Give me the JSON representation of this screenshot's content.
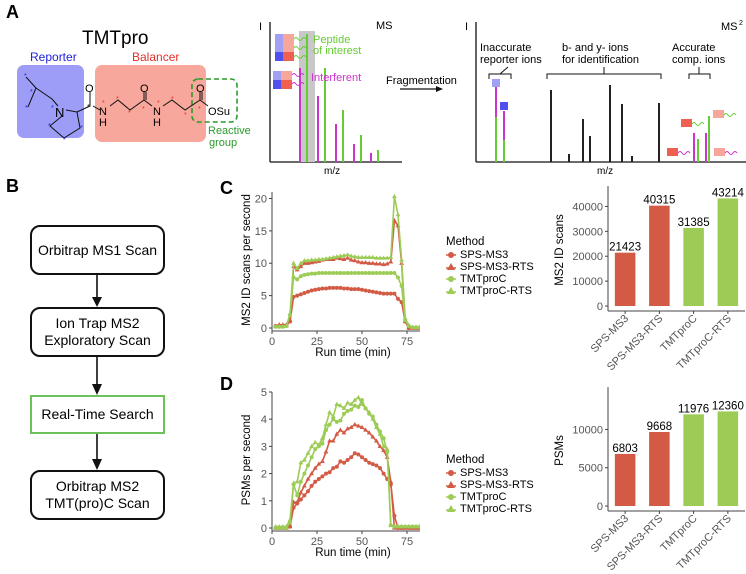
{
  "panels": {
    "A": {
      "label": "A",
      "title": "TMTpro",
      "reporter_label": "Reporter",
      "balancer_label": "Balancer",
      "reactive_label_1": "Reactive",
      "reactive_label_2": "group",
      "atoms": {
        "N1": "N",
        "N2": "N",
        "H2": "H",
        "N3": "N",
        "H3": "H",
        "O1": "O",
        "O2": "O",
        "O3": "O",
        "OSu": "OSu"
      },
      "ms1": {
        "y_label": "I",
        "title": "MS",
        "x_label": "m/z",
        "peptide_label_1": "Peptide",
        "peptide_label_2": "of interest",
        "interferent_label": "Interferent"
      },
      "arrow_label": "Fragmentation",
      "ms2": {
        "y_label": "I",
        "title": "MS",
        "title_sup": "2",
        "x_label": "m/z",
        "group1_1": "Inaccurate",
        "group1_2": "reporter ions",
        "group2_1": "b- and y- ions",
        "group2_2": "for identification",
        "group3_1": "Accurate",
        "group3_2": "comp. ions"
      },
      "colors": {
        "reporter": "#9a9af5",
        "balancer": "#f7a69b",
        "reactive": "#2a9a2a",
        "peptide": "#66cc33",
        "interferent": "#cc33cc"
      }
    },
    "B": {
      "label": "B",
      "steps": [
        {
          "line1": "Orbitrap MS1 Scan",
          "line2": ""
        },
        {
          "line1": "Ion Trap MS2",
          "line2": "Exploratory Scan"
        },
        {
          "line1": "Real-Time Search",
          "line2": ""
        },
        {
          "line1": "Orbitrap MS2",
          "line2": "TMT(pro)C Scan"
        }
      ]
    },
    "C": {
      "label": "C"
    },
    "D": {
      "label": "D"
    }
  },
  "legend": {
    "title": "Method",
    "items": [
      "SPS-MS3",
      "SPS-MS3-RTS",
      "TMTproC",
      "TMTproC-RTS"
    ]
  },
  "colors": {
    "sps": "#d35a45",
    "tmt": "#9ccc55"
  },
  "chart_data": [
    {
      "id": "C-line",
      "type": "line",
      "title": "",
      "xlabel": "Run time (min)",
      "ylabel": "MS2 ID scans per second",
      "xlim": [
        0,
        90
      ],
      "ylim": [
        0,
        21
      ],
      "xticks": [
        0,
        25,
        50,
        75
      ],
      "yticks": [
        0,
        5,
        10,
        15,
        20
      ],
      "grid": false,
      "legend": "right",
      "x": [
        2,
        4,
        6,
        8,
        10,
        12,
        14,
        16,
        18,
        20,
        22,
        24,
        26,
        28,
        30,
        32,
        34,
        36,
        38,
        40,
        42,
        44,
        46,
        48,
        50,
        52,
        54,
        56,
        58,
        60,
        62,
        64,
        66,
        68,
        70,
        72,
        74,
        76,
        78,
        80,
        82,
        84,
        86,
        88
      ],
      "series": [
        {
          "name": "SPS-MS3",
          "marker": "circle",
          "values": [
            0.3,
            0.3,
            0.3,
            0.4,
            1.0,
            4.8,
            5.0,
            5.2,
            5.4,
            5.6,
            5.8,
            5.9,
            6.0,
            6.1,
            6.1,
            6.2,
            6.2,
            6.2,
            6.2,
            6.1,
            6.1,
            6.0,
            6.0,
            6.0,
            5.9,
            5.8,
            5.7,
            5.6,
            5.5,
            5.4,
            5.3,
            5.3,
            5.3,
            5.3,
            4.5,
            4.0,
            1.0,
            0.0,
            0.0,
            0.0,
            0.0,
            0.0,
            0.0,
            0.0
          ]
        },
        {
          "name": "SPS-MS3-RTS",
          "marker": "triangle",
          "values": [
            0.3,
            0.5,
            0.5,
            0.5,
            1.2,
            9.5,
            9.0,
            9.5,
            10.0,
            10.0,
            10.1,
            10.2,
            10.3,
            10.5,
            10.6,
            10.6,
            10.6,
            10.8,
            10.7,
            10.6,
            10.8,
            10.5,
            10.4,
            10.2,
            10.1,
            10.1,
            10.0,
            10.0,
            9.9,
            9.9,
            9.8,
            9.9,
            10.2,
            16.6,
            15.8,
            10.0,
            1.0,
            0.0,
            0.0,
            0.0,
            0.0,
            0.0,
            0.0,
            0.0
          ]
        },
        {
          "name": "TMTproC",
          "marker": "circle",
          "values": [
            0.2,
            0.2,
            0.2,
            0.3,
            2.0,
            7.8,
            7.5,
            8.0,
            8.2,
            8.3,
            8.4,
            8.4,
            8.5,
            8.5,
            8.5,
            8.5,
            8.5,
            8.5,
            8.5,
            8.5,
            8.5,
            8.5,
            8.5,
            8.5,
            8.5,
            8.5,
            8.5,
            8.5,
            8.5,
            8.5,
            8.5,
            8.5,
            8.5,
            8.5,
            7.8,
            6.5,
            1.2,
            0.3,
            0.1,
            0.1,
            0.1,
            0.1,
            0.1,
            0.1
          ]
        },
        {
          "name": "TMTproC-RTS",
          "marker": "triangle",
          "values": [
            0.2,
            0.2,
            0.2,
            0.3,
            2.2,
            10.0,
            9.2,
            10.0,
            10.4,
            10.4,
            10.5,
            10.5,
            10.6,
            10.6,
            10.7,
            10.8,
            10.9,
            11.0,
            11.1,
            11.2,
            11.3,
            11.1,
            11.0,
            10.9,
            10.9,
            10.9,
            10.9,
            10.9,
            10.8,
            10.8,
            10.8,
            10.8,
            10.9,
            20.3,
            17.5,
            10.5,
            1.5,
            0.4,
            0.1,
            0.1,
            0.1,
            0.1,
            0.1,
            0.1
          ]
        }
      ]
    },
    {
      "id": "C-bar",
      "type": "bar",
      "title": "",
      "xlabel": "",
      "ylabel": "MS2 ID scans",
      "categories": [
        "SPS-MS3",
        "SPS-MS3-RTS",
        "TMTproC",
        "TMTproC-RTS"
      ],
      "values": [
        21423,
        40315,
        31385,
        43214
      ],
      "data_labels": [
        "21423",
        "40315",
        "31385",
        "43214"
      ],
      "ylim": [
        0,
        45000
      ],
      "yticks": [
        0,
        10000,
        20000,
        30000,
        40000
      ],
      "bar_colors": [
        "#d35a45",
        "#d35a45",
        "#9ccc55",
        "#9ccc55"
      ],
      "grid": false
    },
    {
      "id": "D-line",
      "type": "line",
      "title": "",
      "xlabel": "Run time (min)",
      "ylabel": "PSMs per second",
      "xlim": [
        0,
        90
      ],
      "ylim": [
        0,
        5
      ],
      "xticks": [
        0,
        25,
        50,
        75
      ],
      "yticks": [
        0,
        1,
        2,
        3,
        4,
        5
      ],
      "grid": false,
      "legend": "right",
      "x": [
        2,
        4,
        6,
        8,
        10,
        12,
        14,
        16,
        18,
        20,
        22,
        24,
        26,
        28,
        30,
        32,
        34,
        36,
        38,
        40,
        42,
        44,
        46,
        48,
        50,
        52,
        54,
        56,
        58,
        60,
        62,
        64,
        66,
        68,
        70,
        72,
        74,
        76,
        78,
        80,
        82,
        84,
        86,
        88
      ],
      "series": [
        {
          "name": "SPS-MS3",
          "marker": "circle",
          "values": [
            0,
            0,
            0,
            0,
            0.05,
            0.75,
            0.9,
            1.05,
            1.2,
            1.35,
            1.55,
            1.7,
            1.8,
            1.9,
            2.0,
            2.05,
            2.2,
            2.25,
            2.45,
            2.4,
            2.5,
            2.6,
            2.75,
            2.7,
            2.6,
            2.5,
            2.4,
            2.35,
            2.3,
            2.2,
            2.0,
            1.8,
            1.6,
            0.45,
            0.0,
            0.0,
            0.0,
            0.0,
            0.0,
            0.0,
            0.0,
            0.0,
            0.0,
            0.0
          ]
        },
        {
          "name": "SPS-MS3-RTS",
          "marker": "triangle",
          "values": [
            0,
            0,
            0,
            0,
            0.05,
            0.95,
            0.95,
            1.3,
            1.55,
            1.8,
            2.0,
            2.2,
            2.35,
            2.45,
            2.8,
            3.2,
            3.2,
            3.45,
            3.6,
            3.5,
            3.65,
            3.7,
            3.8,
            3.75,
            3.7,
            3.6,
            3.5,
            3.35,
            3.2,
            3.0,
            2.85,
            2.6,
            1.7,
            0.0,
            0.0,
            0.0,
            0.0,
            0.0,
            0.0,
            0.0,
            0.0,
            0.0,
            0.0,
            0.0
          ]
        },
        {
          "name": "TMTproC",
          "marker": "circle",
          "values": [
            0,
            0,
            0,
            0,
            0.2,
            1.6,
            1.2,
            1.7,
            2.0,
            2.3,
            2.6,
            2.9,
            3.0,
            3.1,
            3.6,
            3.8,
            4.0,
            3.9,
            3.95,
            4.2,
            4.3,
            4.35,
            4.5,
            4.45,
            4.7,
            4.4,
            4.2,
            4.1,
            3.8,
            3.55,
            3.3,
            2.8,
            0.1,
            0.05,
            0.05,
            0.05,
            0.05,
            0.05,
            0.05,
            0.05,
            0.05,
            0.05,
            0.05,
            0.05
          ]
        },
        {
          "name": "TMTproC-RTS",
          "marker": "triangle",
          "values": [
            0.05,
            0.05,
            0.05,
            0.05,
            0.3,
            1.65,
            1.7,
            2.4,
            2.5,
            2.75,
            3.0,
            3.15,
            3.05,
            3.3,
            3.8,
            4.25,
            4.1,
            4.55,
            4.5,
            4.4,
            4.6,
            4.55,
            4.7,
            4.8,
            4.55,
            4.4,
            4.25,
            4.0,
            3.7,
            3.45,
            3.0,
            2.9,
            0.1,
            0.05,
            0.05,
            0.05,
            0.05,
            0.05,
            0.05,
            0.05,
            0.05,
            0.05,
            0.05,
            0.05
          ]
        }
      ]
    },
    {
      "id": "D-bar",
      "type": "bar",
      "title": "",
      "xlabel": "",
      "ylabel": "PSMs",
      "categories": [
        "SPS-MS3",
        "SPS-MS3-RTS",
        "TMTproC",
        "TMTproC-RTS"
      ],
      "values": [
        6803,
        9668,
        11976,
        12360
      ],
      "data_labels": [
        "6803",
        "9668",
        "11976",
        "12360"
      ],
      "ylim": [
        0,
        14500
      ],
      "yticks": [
        0,
        5000,
        10000
      ],
      "bar_colors": [
        "#d35a45",
        "#d35a45",
        "#9ccc55",
        "#9ccc55"
      ],
      "grid": false
    }
  ]
}
